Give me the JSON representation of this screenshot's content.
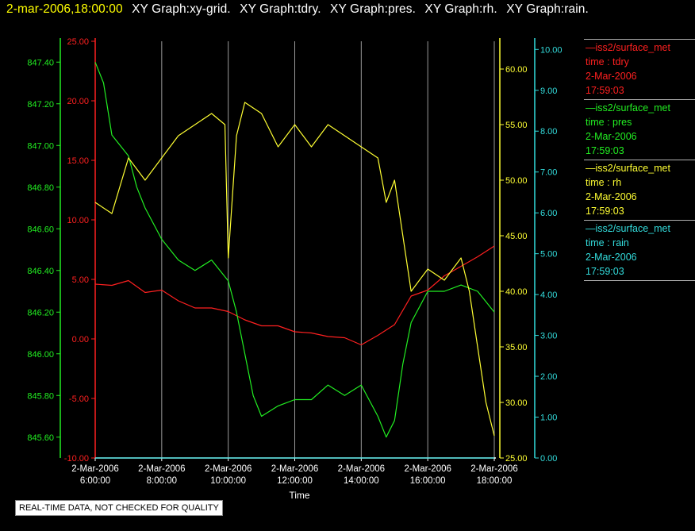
{
  "header": {
    "datetime": "2-mar-2006,18:00:00",
    "graphs": [
      "XY Graph:xy-grid.",
      "XY Graph:tdry.",
      "XY Graph:pres.",
      "XY Graph:rh.",
      "XY Graph:rain."
    ]
  },
  "legend": [
    {
      "source": "iss2/surface_met",
      "var": "time : tdry",
      "date": "2-Mar-2006",
      "time": "17:59:03",
      "color": "#ff2020"
    },
    {
      "source": "iss2/surface_met",
      "var": "time : pres",
      "date": "2-Mar-2006",
      "time": "17:59:03",
      "color": "#22ee22"
    },
    {
      "source": "iss2/surface_met",
      "var": "time : rh",
      "date": "2-Mar-2006",
      "time": "17:59:03",
      "color": "#ffff33"
    },
    {
      "source": "iss2/surface_met",
      "var": "time : rain",
      "date": "2-Mar-2006",
      "time": "17:59:03",
      "color": "#33dddd"
    }
  ],
  "footer": {
    "quality_note": "REAL-TIME DATA, NOT CHECKED FOR QUALITY"
  },
  "colors": {
    "title": "#ffff00",
    "graph_text": "#ffffff",
    "grid": "#9a9a9a"
  },
  "chart_data": {
    "type": "line",
    "xlabel": "Time",
    "x_ticks": [
      "2-Mar-2006 6:00:00",
      "2-Mar-2006 8:00:00",
      "2-Mar-2006 10:00:00",
      "2-Mar-2006 12:00:00",
      "2-Mar-2006 14:00:00",
      "2-Mar-2006 16:00:00",
      "2-Mar-2006 18:00:00"
    ],
    "x_hours": [
      6,
      8,
      10,
      12,
      14,
      16,
      18
    ],
    "grid": true,
    "axes": [
      {
        "id": "pres",
        "color": "#22ee22",
        "ylim": [
          845.5,
          847.5
        ],
        "ticks": [
          845.6,
          845.8,
          846.0,
          846.2,
          846.4,
          846.6,
          846.8,
          847.0,
          847.2,
          847.4
        ],
        "decimals": 2
      },
      {
        "id": "tdry",
        "color": "#ff2020",
        "ylim": [
          -10,
          25
        ],
        "ticks": [
          -10,
          -5,
          0,
          5,
          10,
          15,
          20,
          25
        ],
        "decimals": 2
      },
      {
        "id": "rh",
        "color": "#ffff33",
        "ylim": [
          25,
          62.5
        ],
        "ticks": [
          25,
          30,
          35,
          40,
          45,
          50,
          55,
          60
        ],
        "decimals": 2
      },
      {
        "id": "rain",
        "color": "#33dddd",
        "ylim": [
          0,
          10.2
        ],
        "ticks": [
          0,
          1,
          2,
          3,
          4,
          5,
          6,
          7,
          8,
          9,
          10
        ],
        "decimals": 2
      }
    ],
    "series": [
      {
        "name": "tdry",
        "axis": "tdry",
        "color": "#ff2020",
        "x": [
          6,
          6.5,
          7,
          7.5,
          8,
          8.5,
          9,
          9.5,
          10,
          10.5,
          11,
          11.5,
          12,
          12.5,
          13,
          13.5,
          14,
          14.5,
          15,
          15.5,
          16,
          16.5,
          17,
          17.5,
          18
        ],
        "y": [
          4.6,
          4.5,
          4.9,
          3.9,
          4.1,
          3.2,
          2.6,
          2.6,
          2.3,
          1.6,
          1.1,
          1.1,
          0.6,
          0.5,
          0.2,
          0.1,
          -0.5,
          0.3,
          1.2,
          3.6,
          4.1,
          5.3,
          6.1,
          6.9,
          7.8
        ]
      },
      {
        "name": "pres",
        "axis": "pres",
        "color": "#22ee22",
        "x": [
          6,
          6.25,
          6.5,
          7,
          7.25,
          7.5,
          8,
          8.5,
          9,
          9.5,
          10,
          10.25,
          10.5,
          10.75,
          11,
          11.5,
          12,
          12.5,
          13,
          13.5,
          14,
          14.5,
          14.75,
          15,
          15.25,
          15.5,
          16,
          16.5,
          17,
          17.5,
          18
        ],
        "y": [
          847.4,
          847.3,
          847.05,
          846.95,
          846.8,
          846.7,
          846.55,
          846.45,
          846.4,
          846.45,
          846.35,
          846.2,
          846.0,
          845.8,
          845.7,
          845.75,
          845.78,
          845.78,
          845.85,
          845.8,
          845.85,
          845.7,
          845.6,
          845.68,
          845.95,
          846.15,
          846.3,
          846.3,
          846.33,
          846.3,
          846.2
        ]
      },
      {
        "name": "rh",
        "axis": "rh",
        "color": "#ffff33",
        "x": [
          6,
          6.5,
          7,
          7.5,
          8,
          8.5,
          9,
          9.5,
          9.9,
          10,
          10.25,
          10.5,
          11,
          11.5,
          12,
          12.5,
          13,
          13.5,
          14,
          14.5,
          14.75,
          15,
          15.5,
          16,
          16.5,
          17,
          17.25,
          17.5,
          17.75,
          18
        ],
        "y": [
          48,
          47,
          52,
          50,
          52,
          54,
          55,
          56,
          55,
          43,
          54,
          57,
          56,
          53,
          55,
          53,
          55,
          54,
          53,
          52,
          48,
          50,
          40,
          42,
          41,
          43,
          40,
          35,
          30,
          27
        ]
      },
      {
        "name": "rain",
        "axis": "rain",
        "color": "#33dddd",
        "x": [
          6,
          18
        ],
        "y": [
          0.0,
          0.0
        ]
      }
    ]
  }
}
